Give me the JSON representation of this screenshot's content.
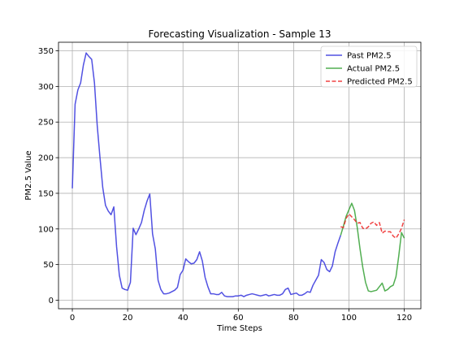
{
  "chart_data": {
    "type": "line",
    "title": "Forecasting Visualization - Sample 13",
    "xlabel": "Time Steps",
    "ylabel": "PM2.5 Value",
    "xlim": [
      -5,
      126
    ],
    "ylim": [
      -12,
      362
    ],
    "xticks": [
      0,
      20,
      40,
      60,
      80,
      100,
      120
    ],
    "yticks": [
      0,
      50,
      100,
      150,
      200,
      250,
      300,
      350
    ],
    "grid": true,
    "legend_position": "top-right",
    "series": [
      {
        "name": "Past PM2.5",
        "color": "#3333dd",
        "style": "solid",
        "x": [
          0,
          1,
          2,
          3,
          4,
          5,
          6,
          7,
          8,
          9,
          10,
          11,
          12,
          13,
          14,
          15,
          16,
          17,
          18,
          19,
          20,
          21,
          22,
          23,
          24,
          25,
          26,
          27,
          28,
          29,
          30,
          31,
          32,
          33,
          34,
          35,
          36,
          37,
          38,
          39,
          40,
          41,
          42,
          43,
          44,
          45,
          46,
          47,
          48,
          49,
          50,
          51,
          52,
          53,
          54,
          55,
          56,
          57,
          58,
          59,
          60,
          61,
          62,
          63,
          64,
          65,
          66,
          67,
          68,
          69,
          70,
          71,
          72,
          73,
          74,
          75,
          76,
          77,
          78,
          79,
          80,
          81,
          82,
          83,
          84,
          85,
          86,
          87,
          88,
          89,
          90,
          91,
          92,
          93,
          94,
          95,
          96
        ],
        "y": [
          157,
          275,
          295,
          305,
          330,
          347,
          342,
          338,
          305,
          245,
          200,
          158,
          133,
          125,
          120,
          131,
          75,
          35,
          17,
          15,
          14,
          25,
          101,
          92,
          100,
          109,
          126,
          139,
          149,
          93,
          72,
          28,
          15,
          9,
          9,
          10,
          12,
          14,
          18,
          36,
          42,
          58,
          54,
          51,
          52,
          57,
          68,
          55,
          32,
          19,
          9,
          9,
          8,
          8,
          11,
          6,
          5,
          5,
          5,
          6,
          6,
          7,
          5,
          7,
          8,
          9,
          8,
          7,
          6,
          7,
          8,
          6,
          7,
          8,
          7,
          7,
          9,
          15,
          17,
          8,
          9,
          10,
          7,
          7,
          9,
          12,
          11,
          21,
          28,
          35,
          57,
          53,
          43,
          40,
          48,
          68,
          80
        ],
        "x_extra": [
          96,
          97
        ],
        "y_extra": [
          80,
          91
        ]
      },
      {
        "name": "Actual PM2.5",
        "color": "#33a033",
        "style": "solid",
        "x": [
          97,
          98,
          99,
          100,
          101,
          102,
          103,
          104,
          105,
          106,
          107,
          108,
          109,
          110,
          111,
          112,
          113,
          114,
          115,
          116,
          117,
          118,
          119,
          120
        ],
        "y": [
          91,
          104,
          118,
          127,
          136,
          126,
          102,
          72,
          46,
          25,
          13,
          12,
          13,
          14,
          19,
          24,
          13,
          15,
          19,
          21,
          33,
          62,
          95,
          87
        ]
      },
      {
        "name": "Predicted PM2.5",
        "color": "#ee2222",
        "style": "dashed",
        "x": [
          97,
          98,
          99,
          100,
          101,
          102,
          103,
          104,
          105,
          106,
          107,
          108,
          109,
          110,
          111,
          112,
          113,
          114,
          115,
          116,
          117,
          118,
          119,
          120
        ],
        "y": [
          103,
          102,
          115,
          121,
          117,
          113,
          108,
          109,
          101,
          100,
          103,
          108,
          110,
          105,
          109,
          94,
          97,
          96,
          96,
          90,
          87,
          93,
          101,
          113
        ]
      }
    ]
  }
}
